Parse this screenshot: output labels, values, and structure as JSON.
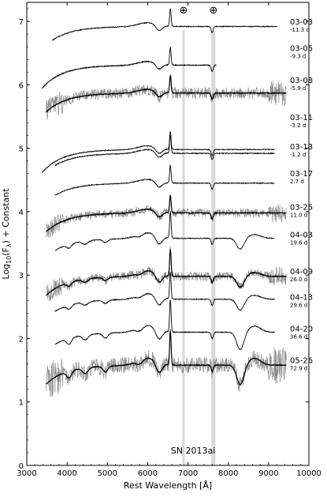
{
  "chart_data": {
    "type": "line",
    "title": "",
    "annotation": "SN 2013ai",
    "xlabel": "Rest Wavelength [Å]",
    "ylabel": "Log10(Fλ) + Constant",
    "ylabel_parts": {
      "base": "Log",
      "sub": "10",
      "open": "(F",
      "lambda": "λ",
      "close": ") + Constant"
    },
    "xlim": [
      3000,
      10000
    ],
    "ylim": [
      0,
      7.3
    ],
    "x_ticks": [
      3000,
      4000,
      5000,
      6000,
      7000,
      8000,
      9000,
      10000
    ],
    "y_ticks": [
      0,
      1,
      2,
      3,
      4,
      5,
      6,
      7
    ],
    "telluric_bands": [
      {
        "range": [
          6860,
          6920
        ],
        "symbol": "⊕"
      },
      {
        "range": [
          7580,
          7680
        ],
        "symbol": "⊕"
      }
    ],
    "series": [
      {
        "date": "03-03",
        "phase": "-11.3 d",
        "x_range": [
          3640,
          9220
        ],
        "offset": 6.92,
        "label_y": 6.94,
        "noise": 0.012,
        "raw": false,
        "amp": 1.0
      },
      {
        "date": "03-05",
        "phase": "-9.3 d",
        "x_range": [
          3380,
          7700
        ],
        "offset": 6.31,
        "label_y": 6.52,
        "noise": 0.012,
        "raw": false,
        "amp": 1.0
      },
      {
        "date": "03-08",
        "phase": "-5.9 d",
        "x_range": [
          3480,
          9440
        ],
        "offset": 5.87,
        "label_y": 6.02,
        "noise": 0.09,
        "raw": true,
        "amp": 1.0
      },
      {
        "date": "03-11",
        "phase": "-3.2 d",
        "x_range": [
          3380,
          9150
        ],
        "offset": 4.98,
        "label_y": 5.43,
        "noise": 0.012,
        "raw": false,
        "amp": 1.0
      },
      {
        "date": "03-13",
        "phase": "-1.2 d",
        "x_range": [
          3700,
          9150
        ],
        "offset": 4.92,
        "label_y": 4.97,
        "noise": 0.012,
        "raw": false,
        "amp": 1.0
      },
      {
        "date": "03-17",
        "phase": "2.7 d",
        "x_range": [
          3700,
          9150
        ],
        "offset": 4.45,
        "label_y": 4.55,
        "noise": 0.012,
        "raw": false,
        "amp": 1.0
      },
      {
        "date": "03-25",
        "phase": "11.0 d",
        "x_range": [
          3480,
          9440
        ],
        "offset": 3.98,
        "label_y": 4.02,
        "noise": 0.07,
        "raw": true,
        "amp": 1.0
      },
      {
        "date": "04-03",
        "phase": "19.6 d",
        "x_range": [
          3700,
          9150
        ],
        "offset": 3.58,
        "label_y": 3.58,
        "noise": 0.012,
        "raw": false,
        "amp": 1.5
      },
      {
        "date": "04-09",
        "phase": "26.0 d",
        "x_range": [
          3480,
          9440
        ],
        "offset": 2.98,
        "label_y": 3.0,
        "noise": 0.07,
        "raw": true,
        "amp": 1.5
      },
      {
        "date": "04-13",
        "phase": "29.6 d",
        "x_range": [
          3700,
          9150
        ],
        "offset": 2.62,
        "label_y": 2.6,
        "noise": 0.012,
        "raw": false,
        "amp": 1.5
      },
      {
        "date": "04-20",
        "phase": "36.6 d",
        "x_range": [
          3700,
          9150
        ],
        "offset": 2.1,
        "label_y": 2.1,
        "noise": 0.012,
        "raw": false,
        "amp": 1.8
      },
      {
        "date": "05-26",
        "phase": "72.9 d",
        "x_range": [
          3480,
          9440
        ],
        "offset": 1.58,
        "label_y": 1.6,
        "noise": 0.13,
        "raw": true,
        "amp": 1.9
      }
    ]
  }
}
